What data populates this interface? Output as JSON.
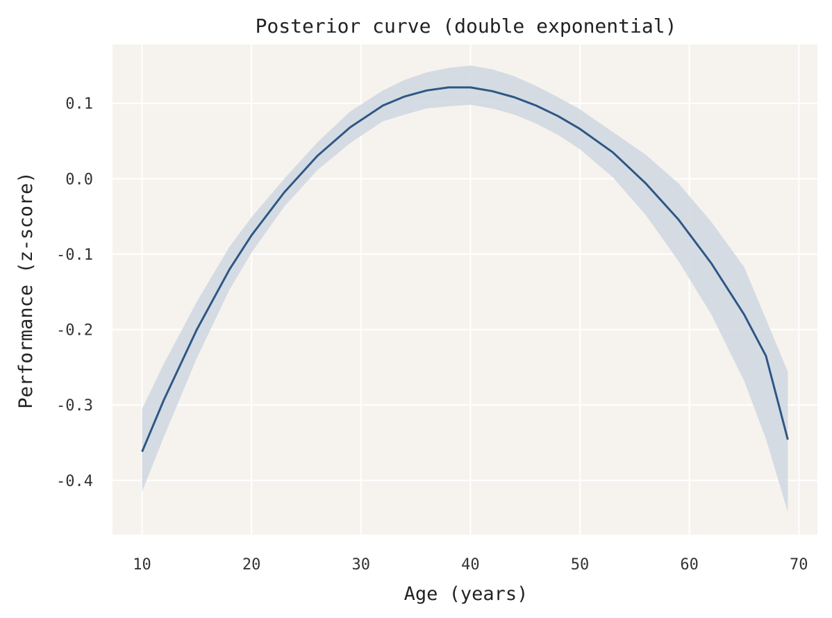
{
  "chart_data": {
    "type": "line",
    "title": "Posterior curve (double exponential)",
    "xlabel": "Age (years)",
    "ylabel": "Performance (z-score)",
    "xlim": [
      7.3,
      71.7
    ],
    "ylim": [
      -0.472,
      0.178
    ],
    "xticks": [
      10,
      20,
      30,
      40,
      50,
      60,
      70
    ],
    "yticks": [
      -0.4,
      -0.3,
      -0.2,
      -0.1,
      0.0,
      0.1
    ],
    "xtick_labels": [
      "10",
      "20",
      "30",
      "40",
      "50",
      "60",
      "70"
    ],
    "ytick_labels": [
      "-0.4",
      "-0.3",
      "-0.2",
      "-0.1",
      "0.0",
      "0.1"
    ],
    "grid": true,
    "colors": {
      "line": "#2e5784",
      "band": "#cfd6e0",
      "plot_bg": "#f6f3ee",
      "grid": "#ffffff"
    },
    "series": [
      {
        "x": [
          10,
          12,
          15,
          18,
          20,
          23,
          26,
          29,
          32,
          34,
          36,
          38,
          40,
          42,
          44,
          46,
          48,
          50,
          53,
          56,
          59,
          62,
          65,
          67,
          69
        ],
        "y": [
          -0.362,
          -0.293,
          -0.2,
          -0.12,
          -0.075,
          -0.018,
          0.03,
          0.068,
          0.097,
          0.109,
          0.117,
          0.121,
          0.121,
          0.116,
          0.108,
          0.097,
          0.083,
          0.066,
          0.035,
          -0.006,
          -0.054,
          -0.112,
          -0.18,
          -0.235,
          -0.346
        ],
        "lower": [
          -0.415,
          -0.342,
          -0.238,
          -0.147,
          -0.098,
          -0.037,
          0.011,
          0.047,
          0.076,
          0.085,
          0.093,
          0.096,
          0.098,
          0.093,
          0.085,
          0.073,
          0.058,
          0.039,
          0.002,
          -0.048,
          -0.109,
          -0.18,
          -0.268,
          -0.345,
          -0.442
        ],
        "upper": [
          -0.305,
          -0.245,
          -0.163,
          -0.09,
          -0.051,
          0.0,
          0.048,
          0.089,
          0.117,
          0.131,
          0.141,
          0.147,
          0.15,
          0.145,
          0.136,
          0.123,
          0.108,
          0.092,
          0.062,
          0.032,
          -0.006,
          -0.057,
          -0.117,
          -0.186,
          -0.256
        ]
      }
    ]
  }
}
